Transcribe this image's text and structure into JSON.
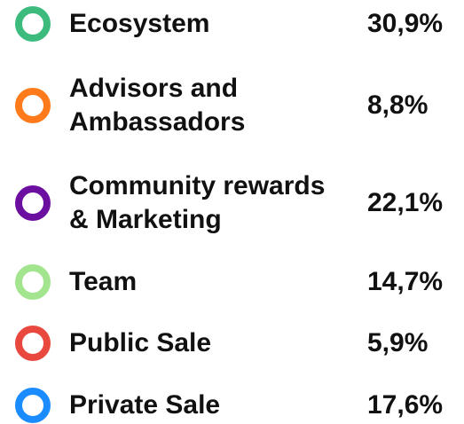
{
  "legend": {
    "items": [
      {
        "label": [
          "Ecosystem"
        ],
        "value": "30,9%",
        "color": "#3dbb7d"
      },
      {
        "label": [
          "Advisors and",
          "Ambassadors"
        ],
        "value": "8,8%",
        "color": "#ff7a1a"
      },
      {
        "label": [
          "Community rewards",
          "& Marketing"
        ],
        "value": "22,1%",
        "color": "#6a0fa0"
      },
      {
        "label": [
          "Team"
        ],
        "value": "14,7%",
        "color": "#a3e48f"
      },
      {
        "label": [
          "Public Sale"
        ],
        "value": "5,9%",
        "color": "#e9483f"
      },
      {
        "label": [
          "Private Sale"
        ],
        "value": "17,6%",
        "color": "#1a8cff"
      }
    ]
  }
}
